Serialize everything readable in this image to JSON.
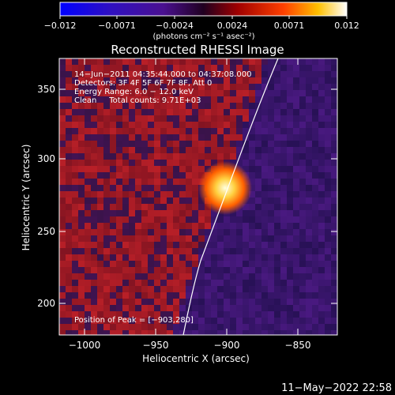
{
  "colorbar": {
    "ticks": [
      "−0.012",
      "−0.0071",
      "−0.0024",
      "0.0024",
      "0.0071",
      "0.012"
    ],
    "units_text": "(photons cm⁻² s⁻¹ asec⁻²)"
  },
  "plot": {
    "title": "Reconstructed RHESSI Image",
    "info_lines": [
      "14−Jun−2011 04:35:44.000 to 04:37:08.000",
      "Detectors: 3F 4F 5F 6F 7F 8F, Att 0",
      "Energy Range: 6.0 − 12.0 keV",
      "Clean     Total counts: 9.71E+03"
    ],
    "peak_text": "Position of Peak = [−903,280]",
    "xlabel": "Heliocentric X (arcsec)",
    "ylabel": "Heliocentric Y (arcsec)",
    "xticks": [
      "−1000",
      "−950",
      "−900",
      "−850"
    ],
    "yticks": [
      "350",
      "300",
      "250",
      "200"
    ]
  },
  "footer": {
    "timestamp": "11−May−2022 22:58"
  },
  "colors": {
    "background": "#000000",
    "limb_line": "#ffffff",
    "negative": "#2a1060",
    "positive": "#b02018",
    "peak": "#ffffc0"
  }
}
